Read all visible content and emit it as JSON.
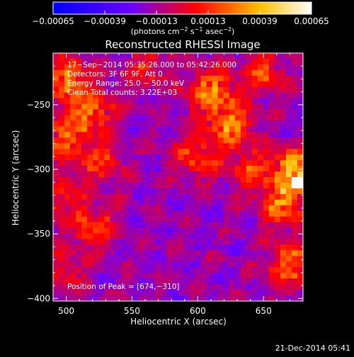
{
  "chart_data": {
    "type": "heatmap",
    "title": "Reconstructed RHESSI Image",
    "xlabel": "Heliocentric X (arcsec)",
    "ylabel": "Heliocentric Y (arcsec)",
    "xlim": [
      490,
      680
    ],
    "ylim": [
      -402,
      -210
    ],
    "xticks": [
      500,
      550,
      600,
      650
    ],
    "xtick_labels": [
      "500",
      "550",
      "600",
      "650"
    ],
    "yticks": [
      -250,
      -300,
      -350,
      -400
    ],
    "ytick_labels": [
      "−250",
      "−300",
      "−350",
      "−400"
    ],
    "colorbar": {
      "range": [
        -0.00065,
        0.00065
      ],
      "ticks": [
        -0.00065,
        -0.00039,
        -0.00013,
        0.00013,
        0.00039,
        0.00065
      ],
      "tick_labels": [
        "−0.00065",
        "−0.00039",
        "−0.00013",
        "0.00013",
        "0.00039",
        "0.00065"
      ],
      "unit_label": "(photons cm",
      "unit_exp1": "−2",
      "unit_s": " s",
      "unit_exp2": "−1",
      "unit_asec": " asec",
      "unit_exp3": "−2",
      "unit_close": ")",
      "colors": [
        "#0000ff",
        "#6a00ff",
        "#ff0000",
        "#ffc000",
        "#ffffff"
      ]
    },
    "annotations": {
      "time": "17−Sep−2014 05:35:26.000 to 05:42:26.000",
      "detectors": "Detectors: 3F 6F 9F, Att 0",
      "energy": "Energy Range: 25.0 − 50.0 keV",
      "method": "Clean     Total counts: 3.22E+03",
      "peak": "Position of Peak = [674,−310]"
    },
    "peak": [
      674,
      -310
    ],
    "bright_regions": [
      {
        "x": 500,
        "y": -230,
        "value": 0.00045
      },
      {
        "x": 520,
        "y": -255,
        "value": 0.0004
      },
      {
        "x": 498,
        "y": -275,
        "value": 0.00035
      },
      {
        "x": 525,
        "y": -295,
        "value": 0.0003
      },
      {
        "x": 495,
        "y": -320,
        "value": 0.00025
      },
      {
        "x": 520,
        "y": -345,
        "value": 0.00035
      },
      {
        "x": 610,
        "y": -240,
        "value": 0.0005
      },
      {
        "x": 625,
        "y": -265,
        "value": 0.00045
      },
      {
        "x": 600,
        "y": -290,
        "value": 0.00035
      },
      {
        "x": 640,
        "y": -300,
        "value": 0.0003
      },
      {
        "x": 672,
        "y": -302,
        "value": 0.0006
      },
      {
        "x": 665,
        "y": -330,
        "value": 0.0004
      },
      {
        "x": 670,
        "y": -375,
        "value": 0.00045
      },
      {
        "x": 650,
        "y": -225,
        "value": 0.0003
      },
      {
        "x": 560,
        "y": -222,
        "value": 0.00025
      },
      {
        "x": 500,
        "y": -380,
        "value": 0.0002
      }
    ]
  },
  "footer": {
    "timestamp": "21-Dec-2014 05:41"
  }
}
